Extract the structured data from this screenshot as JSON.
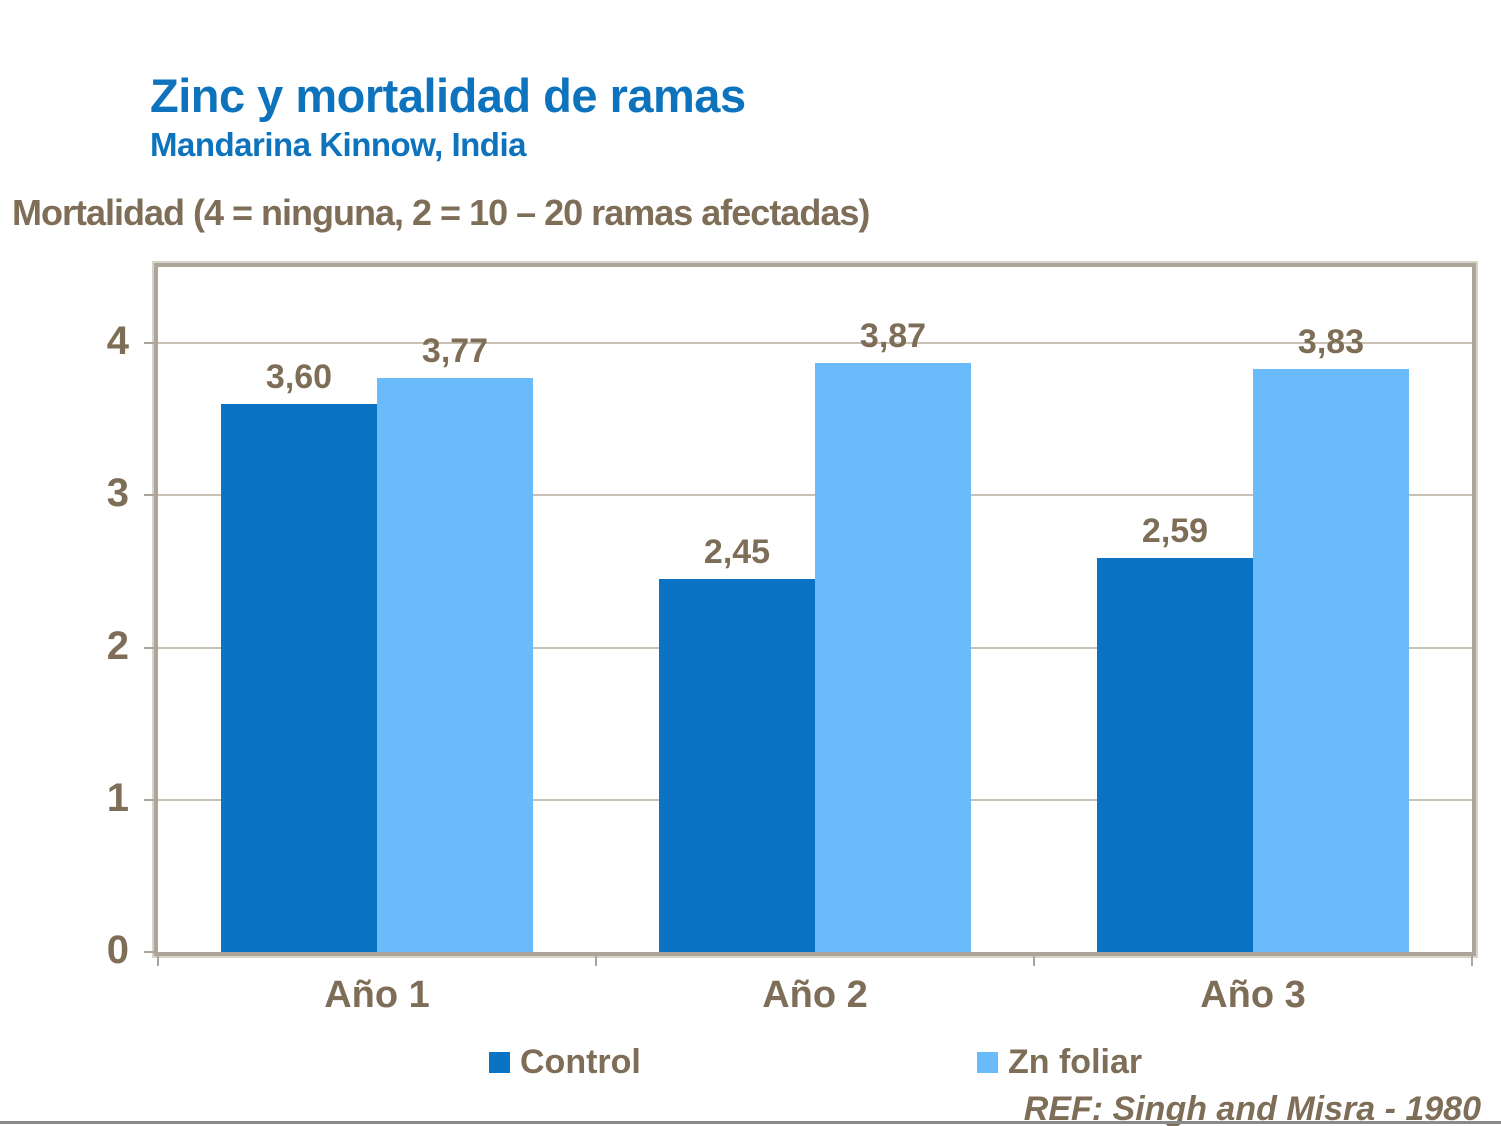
{
  "header": {
    "title": "Zinc y mortalidad de ramas",
    "subtitle": "Mandarina Kinnow, India"
  },
  "footer": {
    "reference": "REF: Singh and Misra - 1980"
  },
  "colors": {
    "title_blue": "#0d73bd",
    "text_brown": "#7e6e58",
    "control_bar_blue": "#0a73c3",
    "zn_foliar_bar_blue": "#69bcf9",
    "plot_frame": "#aea59a",
    "plot_frame_highlight": "#d8d2c8",
    "gridline": "#c9c1b5",
    "bottom_rule": "#8a8a8a"
  },
  "chart_data": {
    "type": "bar",
    "title": "Zinc y mortalidad de ramas",
    "subtitle": "Mandarina Kinnow, India",
    "xlabel": "",
    "ylabel": "Mortalidad (4 = ninguna, 2 = 10 – 20 ramas afectadas)",
    "categories": [
      "Año 1",
      "Año 2",
      "Año 3"
    ],
    "series": [
      {
        "name": "Control",
        "color": "#0a73c3",
        "values": [
          3.6,
          2.45,
          2.59
        ],
        "labels": [
          "3,60",
          "2,45",
          "2,59"
        ]
      },
      {
        "name": "Zn foliar",
        "color": "#69bcf9",
        "values": [
          3.77,
          3.87,
          3.83
        ],
        "labels": [
          "3,77",
          "3,87",
          "3,83"
        ]
      }
    ],
    "ylim": [
      0,
      4.5
    ],
    "yticks": [
      0,
      1,
      2,
      3,
      4
    ],
    "grid": true,
    "legend_position": "bottom"
  }
}
